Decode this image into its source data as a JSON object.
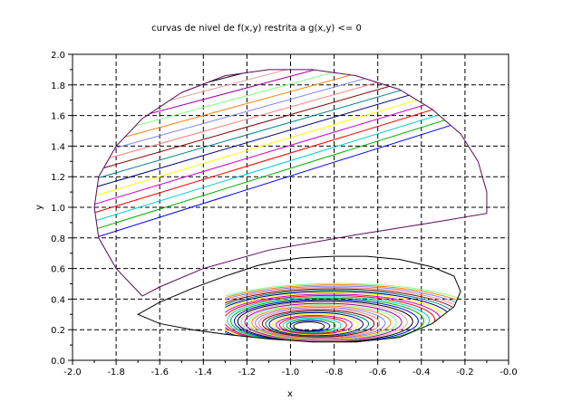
{
  "chart_data": {
    "type": "line",
    "title": "curvas de nivel de f(x,y) restrita a g(x,y) <= 0",
    "xlabel": "x",
    "ylabel": "y",
    "xlim": [
      -2.0,
      0.0
    ],
    "ylim": [
      0.0,
      2.0
    ],
    "xticks": [
      "-2.0",
      "-1.8",
      "-1.6",
      "-1.4",
      "-1.2",
      "-1.0",
      "-0.8",
      "-0.6",
      "-0.4",
      "-0.2",
      "-0.0"
    ],
    "yticks": [
      "0.0",
      "0.2",
      "0.4",
      "0.6",
      "0.8",
      "1.0",
      "1.2",
      "1.4",
      "1.6",
      "1.8",
      "2.0"
    ],
    "grid": true,
    "grid_style": "dashed",
    "region_boundaries": [
      {
        "name": "",
        "x": [
          -1.68,
          -1.8,
          -1.88,
          -1.9,
          -1.88,
          -1.8,
          -1.68,
          -1.5,
          -1.3,
          -1.1,
          -0.9,
          -0.7,
          -0.5,
          -0.35,
          -0.22,
          -0.14,
          -0.1,
          -0.1,
          -0.35,
          -0.7,
          -1.1,
          -1.4,
          -1.6,
          -1.68
        ],
        "y": [
          0.42,
          0.6,
          0.8,
          1.0,
          1.2,
          1.4,
          1.58,
          1.75,
          1.86,
          1.9,
          1.9,
          1.86,
          1.77,
          1.64,
          1.48,
          1.3,
          1.1,
          0.96,
          0.9,
          0.82,
          0.72,
          0.6,
          0.48,
          0.42
        ]
      },
      {
        "name": "",
        "x": [
          -1.7,
          -1.6,
          -1.45,
          -1.3,
          -1.1,
          -0.9,
          -0.7,
          -0.5,
          -0.35,
          -0.25,
          -0.22,
          -0.25,
          -0.35,
          -0.5,
          -0.65,
          -0.8,
          -0.95,
          -1.05,
          -1.15,
          -1.3,
          -1.45,
          -1.6,
          -1.7
        ],
        "y": [
          0.3,
          0.24,
          0.2,
          0.17,
          0.14,
          0.12,
          0.12,
          0.15,
          0.24,
          0.35,
          0.45,
          0.55,
          0.61,
          0.66,
          0.68,
          0.68,
          0.67,
          0.65,
          0.62,
          0.55,
          0.47,
          0.38,
          0.3
        ]
      }
    ],
    "series_colors": [
      "#000000",
      "#0000ff",
      "#00b000",
      "#00cfcf",
      "#ff0000",
      "#cf00cf",
      "#ffff00",
      "#000080",
      "#008080",
      "#800000",
      "#ff8080",
      "#8080ff",
      "#ff8000",
      "#80ff80",
      "#a000a0",
      "#e0a0a0"
    ],
    "level_curves_upper": {
      "x_start": -1.9,
      "y_start_first": 0.8,
      "y_start_step": 0.055,
      "count": 19,
      "slope_dy_dx": 0.45
    },
    "level_curves_lower": {
      "center": [
        -0.92,
        0.22
      ],
      "count": 30,
      "x_min": -1.3
    }
  }
}
